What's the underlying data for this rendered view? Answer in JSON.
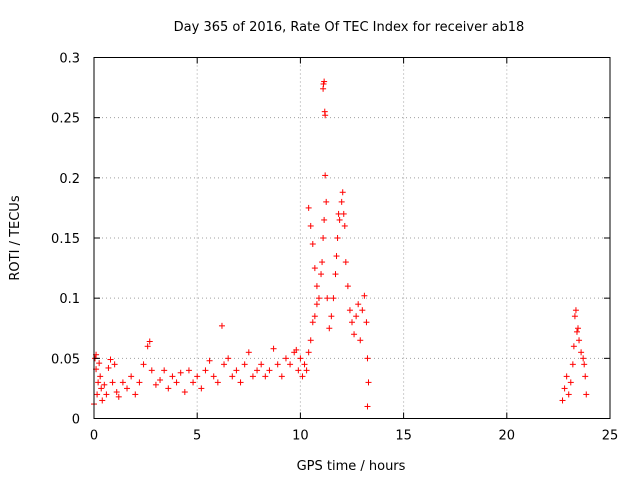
{
  "chart_data": {
    "type": "scatter",
    "title": "Day 365 of 2016, Rate Of TEC Index for receiver ab18",
    "xlabel": "GPS time / hours",
    "ylabel": "ROTI / TECUs",
    "xlim": [
      0,
      25
    ],
    "ylim": [
      0,
      0.3
    ],
    "x_ticks": [
      "0",
      "5",
      "10",
      "15",
      "20",
      "25"
    ],
    "y_ticks": [
      "0",
      "0.05",
      "0.1",
      "0.15",
      "0.2",
      "0.25",
      "0.3"
    ],
    "grid": true,
    "marker": "+",
    "color": "#ff0000",
    "series": [
      {
        "points": [
          [
            0.0,
            0.012
          ],
          [
            0.05,
            0.05
          ],
          [
            0.1,
            0.041
          ],
          [
            0.1,
            0.053
          ],
          [
            0.15,
            0.02
          ],
          [
            0.2,
            0.03
          ],
          [
            0.25,
            0.046
          ],
          [
            0.3,
            0.035
          ],
          [
            0.35,
            0.025
          ],
          [
            0.4,
            0.015
          ],
          [
            0.5,
            0.028
          ],
          [
            0.6,
            0.02
          ],
          [
            0.7,
            0.042
          ],
          [
            0.8,
            0.049
          ],
          [
            0.9,
            0.03
          ],
          [
            1.0,
            0.045
          ],
          [
            1.1,
            0.022
          ],
          [
            1.2,
            0.018
          ],
          [
            1.4,
            0.03
          ],
          [
            1.6,
            0.025
          ],
          [
            1.8,
            0.035
          ],
          [
            2.0,
            0.02
          ],
          [
            2.2,
            0.03
          ],
          [
            2.4,
            0.045
          ],
          [
            2.6,
            0.06
          ],
          [
            2.7,
            0.064
          ],
          [
            2.8,
            0.04
          ],
          [
            3.0,
            0.028
          ],
          [
            3.2,
            0.032
          ],
          [
            3.4,
            0.04
          ],
          [
            3.6,
            0.025
          ],
          [
            3.8,
            0.035
          ],
          [
            4.0,
            0.03
          ],
          [
            4.2,
            0.038
          ],
          [
            4.4,
            0.022
          ],
          [
            4.6,
            0.04
          ],
          [
            4.8,
            0.03
          ],
          [
            5.0,
            0.035
          ],
          [
            5.2,
            0.025
          ],
          [
            5.4,
            0.04
          ],
          [
            5.6,
            0.048
          ],
          [
            5.8,
            0.035
          ],
          [
            6.0,
            0.03
          ],
          [
            6.2,
            0.077
          ],
          [
            6.3,
            0.045
          ],
          [
            6.5,
            0.05
          ],
          [
            6.7,
            0.035
          ],
          [
            6.9,
            0.04
          ],
          [
            7.1,
            0.03
          ],
          [
            7.3,
            0.045
          ],
          [
            7.5,
            0.055
          ],
          [
            7.7,
            0.035
          ],
          [
            7.9,
            0.04
          ],
          [
            8.1,
            0.045
          ],
          [
            8.3,
            0.035
          ],
          [
            8.5,
            0.04
          ],
          [
            8.7,
            0.058
          ],
          [
            8.9,
            0.045
          ],
          [
            9.1,
            0.035
          ],
          [
            9.3,
            0.05
          ],
          [
            9.5,
            0.045
          ],
          [
            9.7,
            0.055
          ],
          [
            9.8,
            0.057
          ],
          [
            9.9,
            0.04
          ],
          [
            10.0,
            0.05
          ],
          [
            10.1,
            0.035
          ],
          [
            10.2,
            0.045
          ],
          [
            10.3,
            0.04
          ],
          [
            10.4,
            0.055
          ],
          [
            10.5,
            0.065
          ],
          [
            10.6,
            0.08
          ],
          [
            10.7,
            0.085
          ],
          [
            10.8,
            0.095
          ],
          [
            10.9,
            0.1
          ],
          [
            11.0,
            0.12
          ],
          [
            11.05,
            0.13
          ],
          [
            11.1,
            0.15
          ],
          [
            11.15,
            0.165
          ],
          [
            11.2,
            0.202
          ],
          [
            11.25,
            0.18
          ],
          [
            11.1,
            0.274
          ],
          [
            11.12,
            0.278
          ],
          [
            11.15,
            0.28
          ],
          [
            11.18,
            0.255
          ],
          [
            11.2,
            0.252
          ],
          [
            10.4,
            0.175
          ],
          [
            10.5,
            0.16
          ],
          [
            10.6,
            0.145
          ],
          [
            10.7,
            0.125
          ],
          [
            10.8,
            0.11
          ],
          [
            11.3,
            0.1
          ],
          [
            11.4,
            0.075
          ],
          [
            11.5,
            0.085
          ],
          [
            11.6,
            0.1
          ],
          [
            11.7,
            0.12
          ],
          [
            11.75,
            0.135
          ],
          [
            11.8,
            0.15
          ],
          [
            11.85,
            0.17
          ],
          [
            11.9,
            0.165
          ],
          [
            12.0,
            0.18
          ],
          [
            12.05,
            0.188
          ],
          [
            12.1,
            0.17
          ],
          [
            12.15,
            0.16
          ],
          [
            12.2,
            0.13
          ],
          [
            12.3,
            0.11
          ],
          [
            12.4,
            0.09
          ],
          [
            12.5,
            0.08
          ],
          [
            12.6,
            0.07
          ],
          [
            12.7,
            0.085
          ],
          [
            12.8,
            0.095
          ],
          [
            12.9,
            0.065
          ],
          [
            13.0,
            0.09
          ],
          [
            13.1,
            0.102
          ],
          [
            13.2,
            0.08
          ],
          [
            13.25,
            0.05
          ],
          [
            13.3,
            0.03
          ],
          [
            13.25,
            0.01
          ],
          [
            22.7,
            0.015
          ],
          [
            22.8,
            0.025
          ],
          [
            22.9,
            0.035
          ],
          [
            23.0,
            0.02
          ],
          [
            23.1,
            0.03
          ],
          [
            23.2,
            0.045
          ],
          [
            23.25,
            0.06
          ],
          [
            23.3,
            0.085
          ],
          [
            23.35,
            0.09
          ],
          [
            23.4,
            0.072
          ],
          [
            23.45,
            0.075
          ],
          [
            23.5,
            0.065
          ],
          [
            23.6,
            0.055
          ],
          [
            23.7,
            0.05
          ],
          [
            23.75,
            0.045
          ],
          [
            23.8,
            0.035
          ],
          [
            23.85,
            0.02
          ]
        ]
      }
    ]
  }
}
